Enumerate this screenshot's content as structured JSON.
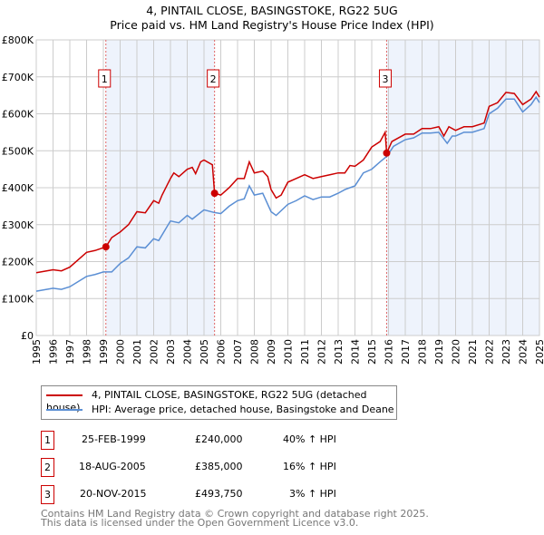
{
  "chart_data": {
    "type": "line",
    "title": "4, PINTAIL CLOSE, BASINGSTOKE, RG22 5UG",
    "subtitle": "Price paid vs. HM Land Registry's House Price Index (HPI)",
    "xlim": [
      1995,
      2025
    ],
    "ylim": [
      0,
      800000
    ],
    "x_ticks": [
      "1995",
      "1996",
      "1997",
      "1998",
      "1999",
      "2000",
      "2001",
      "2002",
      "2003",
      "2004",
      "2005",
      "2006",
      "2007",
      "2008",
      "2009",
      "2010",
      "2011",
      "2012",
      "2013",
      "2014",
      "2015",
      "2016",
      "2017",
      "2018",
      "2019",
      "2020",
      "2021",
      "2022",
      "2023",
      "2024",
      "2025"
    ],
    "y_ticks": [
      {
        "v": 0,
        "label": "£0"
      },
      {
        "v": 100000,
        "label": "£100K"
      },
      {
        "v": 200000,
        "label": "£200K"
      },
      {
        "v": 300000,
        "label": "£300K"
      },
      {
        "v": 400000,
        "label": "£400K"
      },
      {
        "v": 500000,
        "label": "£500K"
      },
      {
        "v": 600000,
        "label": "£600K"
      },
      {
        "v": 700000,
        "label": "£700K"
      },
      {
        "v": 800000,
        "label": "£800K"
      }
    ],
    "grid": true,
    "series": [
      {
        "name": "4, PINTAIL CLOSE, BASINGSTOKE, RG22 5UG (detached house)",
        "color": "#cc0000",
        "x": [
          1995,
          1996,
          1996.5,
          1997,
          1998,
          1998.5,
          1999.15,
          1999.5,
          2000,
          2000.5,
          2001,
          2001.5,
          2002,
          2002.3,
          2002.5,
          2003,
          2003.2,
          2003.5,
          2004,
          2004.3,
          2004.5,
          2004.8,
          2005,
          2005.5,
          2005.63,
          2006,
          2006.5,
          2007,
          2007.4,
          2007.7,
          2008,
          2008.5,
          2008.8,
          2009,
          2009.3,
          2009.6,
          2010,
          2010.5,
          2011,
          2011.5,
          2012,
          2012.5,
          2013,
          2013.4,
          2013.7,
          2014,
          2014.5,
          2015,
          2015.5,
          2015.8,
          2015.89,
          2016.2,
          2017,
          2017.5,
          2018,
          2018.5,
          2019,
          2019.3,
          2019.6,
          2020,
          2020.5,
          2021,
          2021.7,
          2022,
          2022.5,
          2023,
          2023.5,
          2024,
          2024.5,
          2024.8,
          2025
        ],
        "y": [
          170,
          178,
          175,
          185,
          225,
          230,
          240,
          265,
          280,
          300,
          335,
          332,
          365,
          358,
          380,
          425,
          440,
          430,
          450,
          455,
          438,
          470,
          475,
          462,
          385,
          380,
          400,
          425,
          425,
          470,
          440,
          445,
          430,
          395,
          372,
          380,
          415,
          425,
          435,
          425,
          430,
          435,
          440,
          440,
          460,
          458,
          475,
          510,
          525,
          550,
          493.75,
          525,
          545,
          545,
          560,
          560,
          565,
          540,
          565,
          555,
          565,
          565,
          575,
          620,
          630,
          658,
          655,
          625,
          640,
          660,
          645
        ]
      },
      {
        "name": "HPI: Average price, detached house, Basingstoke and Deane",
        "color": "#5b8fd4",
        "x": [
          1995,
          1996,
          1996.5,
          1997,
          1998,
          1998.5,
          1999,
          1999.5,
          2000,
          2000.5,
          2001,
          2001.5,
          2002,
          2002.3,
          2003,
          2003.5,
          2004,
          2004.3,
          2005,
          2005.6,
          2006,
          2006.5,
          2007,
          2007.4,
          2007.7,
          2008,
          2008.5,
          2009,
          2009.3,
          2010,
          2010.5,
          2011,
          2011.5,
          2012,
          2012.5,
          2013,
          2013.4,
          2014,
          2014.5,
          2015,
          2015.5,
          2015.9,
          2016.3,
          2017,
          2017.5,
          2018,
          2018.5,
          2019,
          2019.5,
          2019.8,
          2020,
          2020.5,
          2021,
          2021.7,
          2022,
          2022.5,
          2023,
          2023.5,
          2024,
          2024.5,
          2024.8,
          2025
        ],
        "y": [
          120,
          128,
          125,
          132,
          160,
          165,
          172,
          172,
          195,
          210,
          240,
          237,
          262,
          257,
          310,
          305,
          325,
          315,
          340,
          333,
          330,
          350,
          365,
          370,
          405,
          380,
          385,
          335,
          325,
          355,
          365,
          378,
          368,
          375,
          375,
          385,
          395,
          405,
          440,
          450,
          470,
          485,
          512,
          530,
          535,
          548,
          548,
          550,
          520,
          540,
          540,
          550,
          550,
          560,
          600,
          615,
          640,
          640,
          605,
          625,
          645,
          630
        ]
      }
    ],
    "y_units": "thousands GBP",
    "shaded_ranges": [
      [
        1999.15,
        2005.63
      ],
      [
        2015.89,
        2025
      ]
    ],
    "annotations": [
      {
        "label": "1",
        "x": 1999.15,
        "y": 240,
        "date": "25-FEB-1999",
        "price": "£240,000",
        "hpi": "40% ↑ HPI"
      },
      {
        "label": "2",
        "x": 2005.63,
        "y": 385,
        "date": "18-AUG-2005",
        "price": "£385,000",
        "hpi": "16% ↑ HPI"
      },
      {
        "label": "3",
        "x": 2015.89,
        "y": 493.75,
        "date": "20-NOV-2015",
        "price": "£493,750",
        "hpi": "3% ↑ HPI"
      }
    ],
    "legend_position": "below"
  },
  "footer": {
    "line1": "Contains HM Land Registry data © Crown copyright and database right 2025.",
    "line2": "This data is licensed under the Open Government Licence v3.0."
  }
}
